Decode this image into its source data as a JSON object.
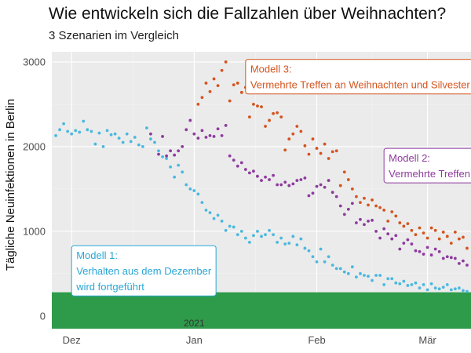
{
  "chart_data": {
    "type": "scatter",
    "title": "Wie entwickeln sich die Fallzahlen über Weihnachten?",
    "subtitle": "3 Szenarien im Vergleich",
    "xlabel": "",
    "ylabel": "Tägliche Neuinfektionen in Berlin",
    "ylim": [
      -150,
      3120
    ],
    "xlim": [
      "2020-11-26",
      "2021-03-12"
    ],
    "x_ticks": [
      {
        "date": "2020-12-01",
        "label": "Dez"
      },
      {
        "date": "2021-01-01",
        "label": "Jan"
      },
      {
        "date": "2021-02-01",
        "label": "Feb"
      },
      {
        "date": "2021-03-01",
        "label": "Mär"
      }
    ],
    "x_year_label": {
      "date": "2021-01-01",
      "label": "2021"
    },
    "y_ticks": [
      0,
      1000,
      2000,
      3000
    ],
    "grid": true,
    "threshold_band": {
      "from": -150,
      "to": 280,
      "color": "#2e9b4a"
    },
    "series": [
      {
        "name": "Modell 1",
        "color": "#4ab8e0",
        "points": [
          [
            "2020-11-27",
            2130
          ],
          [
            "2020-11-28",
            2200
          ],
          [
            "2020-11-29",
            2270
          ],
          [
            "2020-11-30",
            2180
          ],
          [
            "2020-12-01",
            2150
          ],
          [
            "2020-12-02",
            2190
          ],
          [
            "2020-12-03",
            2170
          ],
          [
            "2020-12-04",
            2300
          ],
          [
            "2020-12-05",
            2200
          ],
          [
            "2020-12-06",
            2180
          ],
          [
            "2020-12-07",
            2030
          ],
          [
            "2020-12-08",
            2160
          ],
          [
            "2020-12-09",
            2000
          ],
          [
            "2020-12-10",
            2190
          ],
          [
            "2020-12-11",
            2140
          ],
          [
            "2020-12-12",
            2150
          ],
          [
            "2020-12-13",
            2100
          ],
          [
            "2020-12-14",
            2050
          ],
          [
            "2020-12-15",
            2150
          ],
          [
            "2020-12-16",
            2060
          ],
          [
            "2020-12-17",
            2110
          ],
          [
            "2020-12-18",
            2020
          ],
          [
            "2020-12-19",
            2000
          ],
          [
            "2020-12-20",
            2220
          ],
          [
            "2020-12-21",
            2090
          ],
          [
            "2020-12-22",
            2050
          ],
          [
            "2020-12-23",
            1950
          ],
          [
            "2020-12-24",
            1880
          ],
          [
            "2020-12-25",
            1860
          ],
          [
            "2020-12-26",
            1760
          ],
          [
            "2020-12-27",
            1640
          ],
          [
            "2020-12-28",
            1780
          ],
          [
            "2020-12-29",
            1700
          ],
          [
            "2020-12-30",
            1550
          ],
          [
            "2020-12-31",
            1500
          ],
          [
            "2021-01-01",
            1480
          ],
          [
            "2021-01-02",
            1440
          ],
          [
            "2021-01-03",
            1340
          ],
          [
            "2021-01-04",
            1250
          ],
          [
            "2021-01-05",
            1220
          ],
          [
            "2021-01-06",
            1150
          ],
          [
            "2021-01-07",
            1190
          ],
          [
            "2021-01-08",
            1120
          ],
          [
            "2021-01-09",
            1010
          ],
          [
            "2021-01-10",
            1060
          ],
          [
            "2021-01-11",
            1050
          ],
          [
            "2021-01-12",
            960
          ],
          [
            "2021-01-13",
            1000
          ],
          [
            "2021-01-14",
            920
          ],
          [
            "2021-01-15",
            870
          ],
          [
            "2021-01-16",
            950
          ],
          [
            "2021-01-17",
            1000
          ],
          [
            "2021-01-18",
            940
          ],
          [
            "2021-01-19",
            960
          ],
          [
            "2021-01-20",
            1010
          ],
          [
            "2021-01-21",
            960
          ],
          [
            "2021-01-22",
            870
          ],
          [
            "2021-01-23",
            920
          ],
          [
            "2021-01-24",
            850
          ],
          [
            "2021-01-25",
            860
          ],
          [
            "2021-01-26",
            940
          ],
          [
            "2021-01-27",
            840
          ],
          [
            "2021-01-28",
            910
          ],
          [
            "2021-01-29",
            800
          ],
          [
            "2021-01-30",
            770
          ],
          [
            "2021-01-31",
            700
          ],
          [
            "2021-02-01",
            640
          ],
          [
            "2021-02-02",
            790
          ],
          [
            "2021-02-03",
            640
          ],
          [
            "2021-02-04",
            700
          ],
          [
            "2021-02-05",
            600
          ],
          [
            "2021-02-06",
            560
          ],
          [
            "2021-02-07",
            560
          ],
          [
            "2021-02-08",
            520
          ],
          [
            "2021-02-09",
            500
          ],
          [
            "2021-02-10",
            580
          ],
          [
            "2021-02-11",
            460
          ],
          [
            "2021-02-12",
            500
          ],
          [
            "2021-02-13",
            480
          ],
          [
            "2021-02-14",
            470
          ],
          [
            "2021-02-15",
            420
          ],
          [
            "2021-02-16",
            480
          ],
          [
            "2021-02-17",
            480
          ],
          [
            "2021-02-18",
            370
          ],
          [
            "2021-02-19",
            440
          ],
          [
            "2021-02-20",
            440
          ],
          [
            "2021-02-21",
            390
          ],
          [
            "2021-02-22",
            380
          ],
          [
            "2021-02-23",
            410
          ],
          [
            "2021-02-24",
            360
          ],
          [
            "2021-02-25",
            370
          ],
          [
            "2021-02-26",
            390
          ],
          [
            "2021-02-27",
            330
          ],
          [
            "2021-02-28",
            370
          ],
          [
            "2021-03-01",
            310
          ],
          [
            "2021-03-02",
            380
          ],
          [
            "2021-03-03",
            330
          ],
          [
            "2021-03-04",
            320
          ],
          [
            "2021-03-05",
            340
          ],
          [
            "2021-03-06",
            370
          ],
          [
            "2021-03-07",
            310
          ],
          [
            "2021-03-08",
            320
          ],
          [
            "2021-03-09",
            330
          ],
          [
            "2021-03-10",
            300
          ],
          [
            "2021-03-11",
            290
          ]
        ]
      },
      {
        "name": "Modell 2",
        "color": "#8e3a9e",
        "points": [
          [
            "2020-12-21",
            2150
          ],
          [
            "2020-12-23",
            1910
          ],
          [
            "2020-12-24",
            2120
          ],
          [
            "2020-12-25",
            1890
          ],
          [
            "2020-12-26",
            1950
          ],
          [
            "2020-12-27",
            1900
          ],
          [
            "2020-12-28",
            1950
          ],
          [
            "2020-12-29",
            2000
          ],
          [
            "2020-12-30",
            2200
          ],
          [
            "2020-12-31",
            2310
          ],
          [
            "2021-01-01",
            2150
          ],
          [
            "2021-01-02",
            2100
          ],
          [
            "2021-01-03",
            2190
          ],
          [
            "2021-01-04",
            2110
          ],
          [
            "2021-01-05",
            2130
          ],
          [
            "2021-01-06",
            2120
          ],
          [
            "2021-01-07",
            2210
          ],
          [
            "2021-01-08",
            2130
          ],
          [
            "2021-01-09",
            2250
          ],
          [
            "2021-01-10",
            1890
          ],
          [
            "2021-01-11",
            1840
          ],
          [
            "2021-01-12",
            1770
          ],
          [
            "2021-01-13",
            1810
          ],
          [
            "2021-01-14",
            1730
          ],
          [
            "2021-01-15",
            1690
          ],
          [
            "2021-01-16",
            1710
          ],
          [
            "2021-01-17",
            1650
          ],
          [
            "2021-01-18",
            1600
          ],
          [
            "2021-01-19",
            1640
          ],
          [
            "2021-01-20",
            1610
          ],
          [
            "2021-01-21",
            1660
          ],
          [
            "2021-01-22",
            1550
          ],
          [
            "2021-01-23",
            1550
          ],
          [
            "2021-01-24",
            1580
          ],
          [
            "2021-01-25",
            1540
          ],
          [
            "2021-01-26",
            1560
          ],
          [
            "2021-01-27",
            1600
          ],
          [
            "2021-01-28",
            1610
          ],
          [
            "2021-01-29",
            1630
          ],
          [
            "2021-01-30",
            1420
          ],
          [
            "2021-01-31",
            1450
          ],
          [
            "2021-02-01",
            1530
          ],
          [
            "2021-02-02",
            1550
          ],
          [
            "2021-02-03",
            1520
          ],
          [
            "2021-02-04",
            1600
          ],
          [
            "2021-02-05",
            1460
          ],
          [
            "2021-02-06",
            1410
          ],
          [
            "2021-02-07",
            1300
          ],
          [
            "2021-02-08",
            1200
          ],
          [
            "2021-02-09",
            1260
          ],
          [
            "2021-02-10",
            1330
          ],
          [
            "2021-02-11",
            1100
          ],
          [
            "2021-02-12",
            1140
          ],
          [
            "2021-02-13",
            1080
          ],
          [
            "2021-02-14",
            1120
          ],
          [
            "2021-02-15",
            1130
          ],
          [
            "2021-02-16",
            1000
          ],
          [
            "2021-02-17",
            920
          ],
          [
            "2021-02-18",
            1030
          ],
          [
            "2021-02-19",
            970
          ],
          [
            "2021-02-20",
            910
          ],
          [
            "2021-02-21",
            950
          ],
          [
            "2021-02-22",
            790
          ],
          [
            "2021-02-23",
            860
          ],
          [
            "2021-02-24",
            900
          ],
          [
            "2021-02-25",
            850
          ],
          [
            "2021-02-26",
            770
          ],
          [
            "2021-02-27",
            760
          ],
          [
            "2021-02-28",
            730
          ],
          [
            "2021-03-01",
            810
          ],
          [
            "2021-03-02",
            720
          ],
          [
            "2021-03-03",
            790
          ],
          [
            "2021-03-04",
            760
          ],
          [
            "2021-03-05",
            680
          ],
          [
            "2021-03-06",
            700
          ],
          [
            "2021-03-07",
            690
          ],
          [
            "2021-03-08",
            680
          ],
          [
            "2021-03-09",
            620
          ],
          [
            "2021-03-10",
            650
          ],
          [
            "2021-03-11",
            600
          ]
        ]
      },
      {
        "name": "Modell 3",
        "color": "#d4541f",
        "points": [
          [
            "2021-01-02",
            2500
          ],
          [
            "2021-01-03",
            2580
          ],
          [
            "2021-01-04",
            2750
          ],
          [
            "2021-01-05",
            2650
          ],
          [
            "2021-01-06",
            2800
          ],
          [
            "2021-01-07",
            2720
          ],
          [
            "2021-01-08",
            2900
          ],
          [
            "2021-01-09",
            3000
          ],
          [
            "2021-01-10",
            2540
          ],
          [
            "2021-01-11",
            2730
          ],
          [
            "2021-01-12",
            2750
          ],
          [
            "2021-01-13",
            2640
          ],
          [
            "2021-01-14",
            2700
          ],
          [
            "2021-01-15",
            2350
          ],
          [
            "2021-01-16",
            2500
          ],
          [
            "2021-01-17",
            2480
          ],
          [
            "2021-01-18",
            2470
          ],
          [
            "2021-01-19",
            2240
          ],
          [
            "2021-01-20",
            2310
          ],
          [
            "2021-01-21",
            2390
          ],
          [
            "2021-01-22",
            2400
          ],
          [
            "2021-01-23",
            2350
          ],
          [
            "2021-01-24",
            1960
          ],
          [
            "2021-01-25",
            2090
          ],
          [
            "2021-01-26",
            2150
          ],
          [
            "2021-01-27",
            2240
          ],
          [
            "2021-01-28",
            2180
          ],
          [
            "2021-01-29",
            2010
          ],
          [
            "2021-01-30",
            1910
          ],
          [
            "2021-01-31",
            2090
          ],
          [
            "2021-02-01",
            1980
          ],
          [
            "2021-02-02",
            1920
          ],
          [
            "2021-02-03",
            2030
          ],
          [
            "2021-02-04",
            1860
          ],
          [
            "2021-02-05",
            1940
          ],
          [
            "2021-02-06",
            1950
          ],
          [
            "2021-02-07",
            1540
          ],
          [
            "2021-02-08",
            1700
          ],
          [
            "2021-02-09",
            1610
          ],
          [
            "2021-02-10",
            1500
          ],
          [
            "2021-02-11",
            1410
          ],
          [
            "2021-02-12",
            1340
          ],
          [
            "2021-02-13",
            1390
          ],
          [
            "2021-02-14",
            1310
          ],
          [
            "2021-02-15",
            1370
          ],
          [
            "2021-02-16",
            1300
          ],
          [
            "2021-02-17",
            1280
          ],
          [
            "2021-02-18",
            1250
          ],
          [
            "2021-02-19",
            1120
          ],
          [
            "2021-02-20",
            1230
          ],
          [
            "2021-02-21",
            1180
          ],
          [
            "2021-02-22",
            1100
          ],
          [
            "2021-02-23",
            1060
          ],
          [
            "2021-02-24",
            1090
          ],
          [
            "2021-02-25",
            1010
          ],
          [
            "2021-02-26",
            960
          ],
          [
            "2021-02-27",
            1040
          ],
          [
            "2021-02-28",
            980
          ],
          [
            "2021-03-01",
            920
          ],
          [
            "2021-03-02",
            1040
          ],
          [
            "2021-03-03",
            1010
          ],
          [
            "2021-03-04",
            910
          ],
          [
            "2021-03-05",
            990
          ],
          [
            "2021-03-06",
            940
          ],
          [
            "2021-03-07",
            860
          ],
          [
            "2021-03-08",
            990
          ],
          [
            "2021-03-09",
            910
          ],
          [
            "2021-03-10",
            930
          ],
          [
            "2021-03-11",
            800
          ]
        ]
      }
    ],
    "annotations": [
      {
        "series": "Modell 1",
        "lines": [
          "Modell 1:",
          "Verhalten aus dem Dezember",
          "wird fortgeführt"
        ],
        "color": "#29a7d6",
        "anchor": [
          "2020-12-01",
          830
        ]
      },
      {
        "series": "Modell 2",
        "lines": [
          "Modell 2:",
          "Vermehrte Treffen"
        ],
        "color": "#8e3a9e",
        "anchor": [
          "2021-02-18",
          1980
        ]
      },
      {
        "series": "Modell 3",
        "lines": [
          "Modell 3:",
          "Vermehrte Treffen an Weihnachten und Silvester"
        ],
        "color": "#d4541f",
        "anchor": [
          "2021-01-14",
          3030
        ]
      }
    ]
  }
}
